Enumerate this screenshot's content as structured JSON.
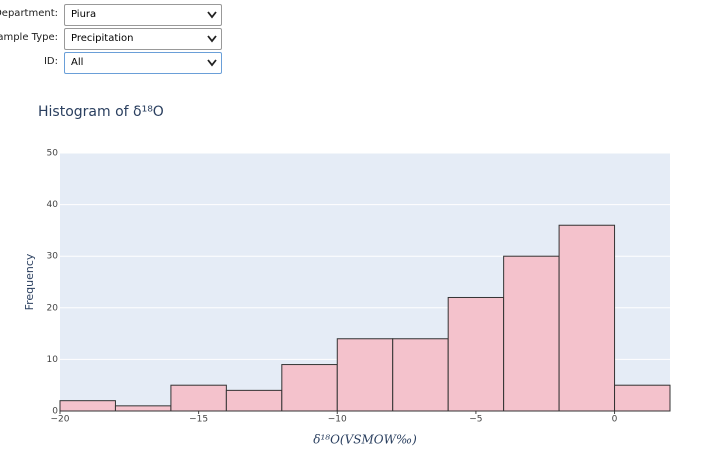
{
  "form": {
    "fields": [
      {
        "label": "Department:",
        "value": "Piura"
      },
      {
        "label": "Sample Type:",
        "value": "Precipitation"
      },
      {
        "label": "ID:",
        "value": "All"
      }
    ]
  },
  "chart_data": {
    "type": "histogram",
    "title": "Histogram of δ¹⁸O",
    "x_label": "δ¹⁸O(VSMOW‰)",
    "y_label": "Frequency",
    "bins": [
      -20,
      -18,
      -16,
      -14,
      -12,
      -10,
      -8,
      -6,
      -4,
      -2,
      0,
      2
    ],
    "values": [
      2,
      1,
      5,
      4,
      9,
      14,
      14,
      22,
      30,
      36,
      5
    ],
    "color": "#f4c2cc",
    "edge_color": "#333333",
    "xlim": [
      -20,
      2
    ],
    "ylim": [
      0,
      50
    ],
    "xticks": [
      {
        "value": -20,
        "label": "−20"
      },
      {
        "value": -15,
        "label": "−15"
      },
      {
        "value": -10,
        "label": "−10"
      },
      {
        "value": -5,
        "label": "−5"
      },
      0
    ],
    "yticks": [
      0,
      10,
      20,
      30,
      40,
      50
    ],
    "grid": true
  }
}
